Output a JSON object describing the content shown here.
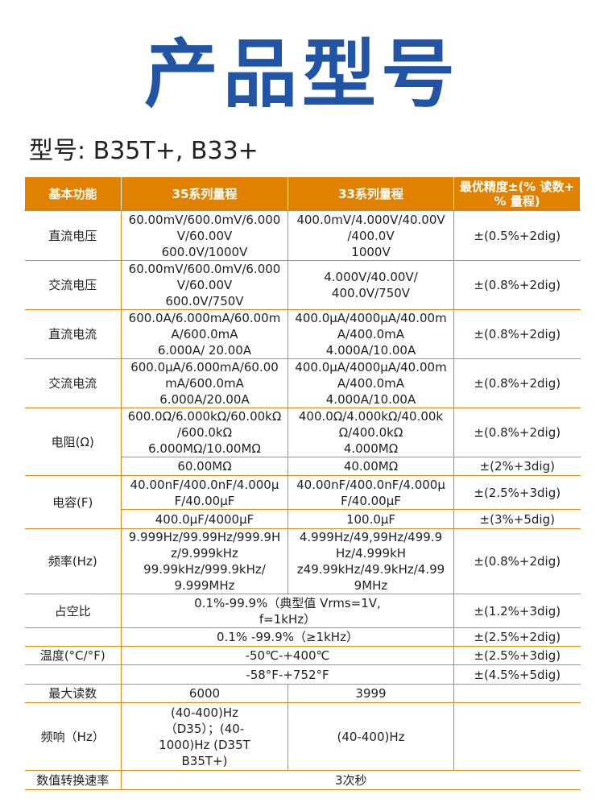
{
  "title": "产品型号",
  "model_line": "型号: B35T+, B33+",
  "colors": {
    "title": "#2254a6",
    "header_bg": "#e08200",
    "border": "#e8860f"
  },
  "table": {
    "headers": [
      "基本功能",
      "35系列量程",
      "33系列量程",
      "最优精度±(% 读数+\n% 量程)"
    ],
    "rows": [
      {
        "func": "直流电压",
        "r35": "60.00mV/600.0mV/6.000\nV/60.00V\n600.0V/1000V",
        "r33": "400.0mV/4.000V/40.00V\n/400.0V\n1000V",
        "acc": "±(0.5%+2dig)"
      },
      {
        "func": "交流电压",
        "r35": "60.00mV/600.0mV/6.000\nV/60.00V\n600.0V/750V",
        "r33": "4.000V/40.00V/\n400.0V/750V",
        "acc": "±(0.8%+2dig)"
      },
      {
        "func": "直流电流",
        "r35": "600.0A/6.000mA/60.00m\nA/600.0mA\n6.000A/ 20.00A",
        "r33": "400.0μA/4000μA/40.00m\nA/400.0mA\n4.000A/10.00A",
        "acc": "±(0.8%+2dig)"
      },
      {
        "func": "交流电流",
        "r35": "600.0μA/6.000mA/60.00\nmA/600.0mA\n6.000A/20.00A",
        "r33": "400.0μA/4000μA/40.00m\nA/400.0mA\n4.000A/10.00A",
        "acc": "±(0.8%+2dig)"
      },
      {
        "func": "电阻(Ω)",
        "r35": "600.0Ω/6.000kΩ/60.00kΩ\n/600.0kΩ\n6.000MΩ/10.00MΩ",
        "r33": "400.0Ω/4.000kΩ/40.00k\nΩ/400.0kΩ\n4.000MΩ",
        "acc": "±(0.8%+2dig)",
        "r35b": "60.00MΩ",
        "r33b": "40.00MΩ",
        "accb": "±(2%+3dig)"
      },
      {
        "func": "电容(F)",
        "r35": "40.00nF/400.0nF/4.000μ\nF/40.00μF",
        "r33": "40.00nF/400.0nF/4.000μ\nF/40.00μF",
        "acc": "±(2.5%+3dig)",
        "r35b": "400.0μF/4000μF",
        "r33b": "100.0μF",
        "accb": "±(3%+5dig)"
      },
      {
        "func": "频率(Hz)",
        "r35": "9.999Hz/99.99Hz/999.9H\nz/9.999kHz\n99.99kHz/999.9kHz/\n9.999MHz",
        "r33": "4.999Hz/49,99Hz/499.9\nHz/4.999kH\nz49.99kHz/49.9kHz/4.99\n9MHz",
        "acc": "±(0.8%+2dig)"
      },
      {
        "func": "占空比",
        "both": "0.1%-99.9%（典型值 Vrms=1V,\nf=1kHz）",
        "acc": "±(1.2%+3dig)"
      },
      {
        "func": "",
        "both": "0.1% -99.9%（≥1kHz）",
        "acc": "±(2.5%+2dig)"
      },
      {
        "func": "温度(°C/°F)",
        "both": "-50℃-+400℃",
        "acc": "±(2.5%+3dig)"
      },
      {
        "func": "",
        "both": "-58°F-+752°F",
        "acc": "±(4.5%+5dig)"
      },
      {
        "func": "最大读数",
        "r35": "6000",
        "r33": "3999",
        "acc": ""
      },
      {
        "func": "频响（Hz）",
        "r35": "(40-400)Hz\n（D35）；(40-\n1000)Hz (D35T\nB35T+)",
        "r33": "(40-400)Hz",
        "acc": ""
      },
      {
        "func": "数值转换速率",
        "all": "3次秒"
      }
    ]
  }
}
